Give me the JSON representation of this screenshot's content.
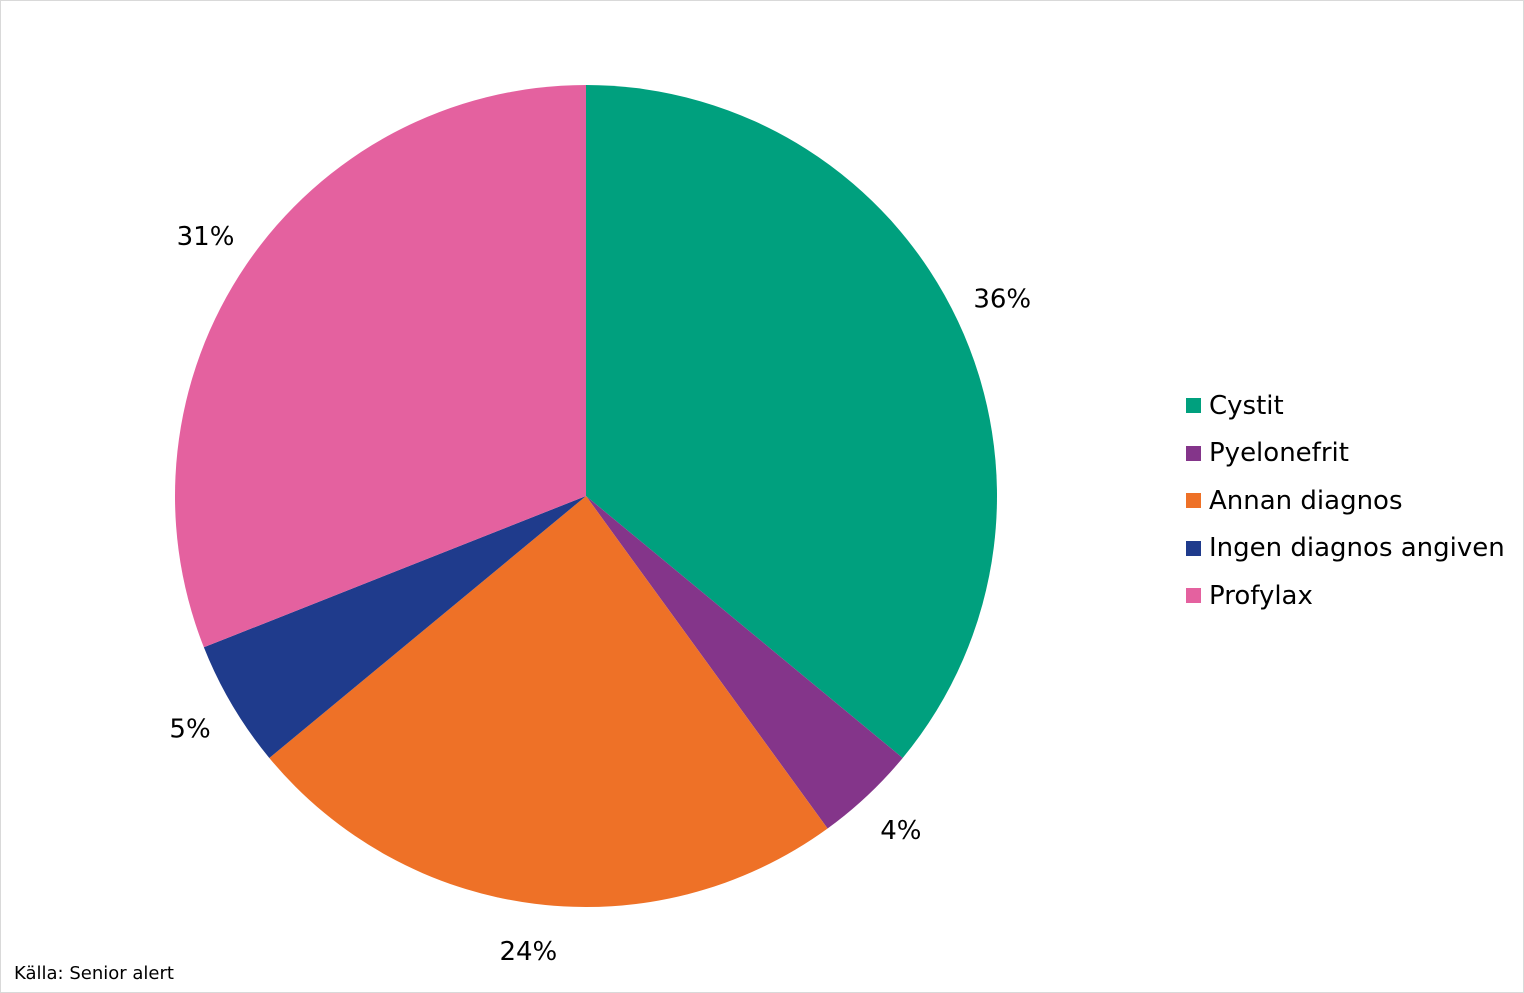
{
  "chart_data": {
    "type": "pie",
    "categories": [
      "Cystit",
      "Pyelonefrit",
      "Annan diagnos",
      "Ingen diagnos angiven",
      "Profylax"
    ],
    "values": [
      36,
      4,
      24,
      5,
      31
    ],
    "labels": [
      "36%",
      "4%",
      "24%",
      "5%",
      "31%"
    ],
    "colors": [
      "#00A07E",
      "#84358A",
      "#EE7127",
      "#1F3B8C",
      "#E4619F"
    ],
    "start_angle": "12 o'clock",
    "direction": "clockwise",
    "legend_position": "right"
  },
  "source": "Källa: Senior alert"
}
